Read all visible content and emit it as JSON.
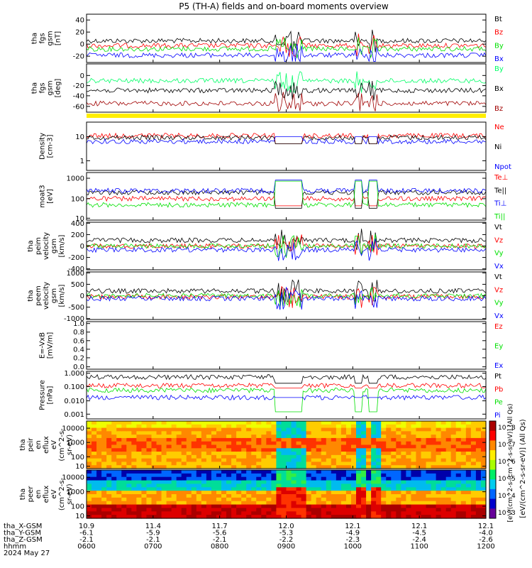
{
  "title": "P5 (TH-A) fields and on-board moments overview",
  "colors": {
    "black": "#000000",
    "red": "#ff0000",
    "green": "#00e000",
    "blue": "#0000ff",
    "lgreen": "#00ff66",
    "dred": "#a00000",
    "yellow": "#ffee00"
  },
  "chart_data": [
    {
      "type": "line",
      "id": "p1",
      "ylabel": [
        "tha",
        "fgs",
        "gsm",
        "[nT]"
      ],
      "yticks": [
        "40",
        "20",
        "0",
        "-20"
      ],
      "series": [
        {
          "name": "Bt",
          "color": "black"
        },
        {
          "name": "Bz",
          "color": "red"
        },
        {
          "name": "By",
          "color": "green"
        },
        {
          "name": "Bx",
          "color": "blue"
        }
      ]
    },
    {
      "type": "line",
      "id": "p2",
      "ylabel": [
        "tha",
        "fgs",
        "gsm",
        "[deg]"
      ],
      "yticks": [
        "0",
        "-20",
        "-40",
        "-60"
      ],
      "series": [
        {
          "name": "By",
          "color": "lgreen"
        },
        {
          "name": "Bx",
          "color": "black"
        },
        {
          "name": "Bz",
          "color": "dred"
        }
      ]
    },
    {
      "type": "line",
      "id": "p4",
      "ylabel": [
        "Density",
        "[cm-3]"
      ],
      "yticks": [
        "10",
        "1"
      ],
      "ylog": true,
      "series": [
        {
          "name": "Ne",
          "color": "red"
        },
        {
          "name": "Ni",
          "color": "black"
        },
        {
          "name": "Npot",
          "color": "blue"
        }
      ]
    },
    {
      "type": "line",
      "id": "p5",
      "ylabel": [
        "moat3",
        "[eV]"
      ],
      "yticks": [
        "1000",
        "100",
        "10"
      ],
      "ylog": true,
      "series": [
        {
          "name": "Te⊥",
          "color": "red"
        },
        {
          "name": "Te||",
          "color": "black"
        },
        {
          "name": "Ti⊥",
          "color": "blue"
        },
        {
          "name": "Ti||",
          "color": "green"
        }
      ]
    },
    {
      "type": "line",
      "id": "p6",
      "ylabel": [
        "tha",
        "peim",
        "velocity",
        "gsm",
        "[km/s]"
      ],
      "yticks": [
        "400",
        "200",
        "0",
        "-200",
        "-400"
      ],
      "series": [
        {
          "name": "Vt",
          "color": "black"
        },
        {
          "name": "Vz",
          "color": "red"
        },
        {
          "name": "Vy",
          "color": "green"
        },
        {
          "name": "Vx",
          "color": "blue"
        }
      ]
    },
    {
      "type": "line",
      "id": "p7",
      "ylabel": [
        "tha",
        "peem",
        "velocity",
        "gsm",
        "[km/s]"
      ],
      "yticks": [
        "1000",
        "500",
        "0",
        "-500",
        "-1000"
      ],
      "series": [
        {
          "name": "Vt",
          "color": "black"
        },
        {
          "name": "Vz",
          "color": "red"
        },
        {
          "name": "Vy",
          "color": "green"
        },
        {
          "name": "Vx",
          "color": "blue"
        }
      ]
    },
    {
      "type": "line",
      "id": "p8",
      "ylabel": [
        "E=-VxB",
        "[mV/m]"
      ],
      "yticks": [
        "1.0",
        "0.8",
        "0.6",
        "0.4",
        "0.2",
        "0.0"
      ],
      "series": [
        {
          "name": "Ez",
          "color": "red"
        },
        {
          "name": "Ey",
          "color": "green"
        },
        {
          "name": "Ex",
          "color": "blue"
        }
      ]
    },
    {
      "type": "line",
      "id": "p9",
      "ylabel": [
        "Pressure",
        "[nPa]"
      ],
      "yticks": [
        "1.000",
        "0.100",
        "0.010",
        "0.001"
      ],
      "ylog": true,
      "series": [
        {
          "name": "Pt",
          "color": "black"
        },
        {
          "name": "Pb",
          "color": "red"
        },
        {
          "name": "Pe",
          "color": "green"
        },
        {
          "name": "Pi",
          "color": "blue"
        }
      ]
    },
    {
      "type": "heatmap",
      "id": "p10",
      "ylabel": [
        "tha",
        "peir",
        "en",
        "eflux",
        "eV",
        "(cm^2-s-",
        "sr-eV)"
      ],
      "yticks": [
        "10000",
        "1000",
        "100",
        "10"
      ],
      "ylog": true
    },
    {
      "type": "heatmap",
      "id": "p11",
      "ylabel": [
        "tha",
        "peer",
        "en",
        "eflux",
        "eV",
        "(cm^2-s-",
        "sr-eV)"
      ],
      "yticks": [
        "10000",
        "1000",
        "100",
        "10"
      ],
      "ylog": true
    }
  ],
  "colorbar": {
    "ticks": [
      "10^8",
      "10^7",
      "10^6",
      "10^5",
      "10^4",
      "10^3"
    ],
    "label": "[eV/(cm^2-s-sr-eV)] (All Qs)",
    "overlay_label": "[eV/(cm^2-s-(cm^2-s-sr-eV)] (All Qs)"
  },
  "xaxis": {
    "rows": [
      {
        "label": "tha_X-GSM",
        "values": [
          "10.9",
          "11.4",
          "11.7",
          "12.0",
          "12.1",
          "12.1",
          "12.1"
        ]
      },
      {
        "label": "tha_Y-GSM",
        "values": [
          "-6.1",
          "-5.9",
          "-5.6",
          "-5.3",
          "-4.9",
          "-4.5",
          "-4.0"
        ]
      },
      {
        "label": "tha_Z-GSM",
        "values": [
          "-2.1",
          "-2.1",
          "-2.1",
          "-2.2",
          "-2.3",
          "-2.4",
          "-2.6"
        ]
      },
      {
        "label": "hhmm",
        "values": [
          "0600",
          "0700",
          "0800",
          "0900",
          "1000",
          "1100",
          "1200"
        ]
      }
    ],
    "date": "2024 May 27"
  }
}
